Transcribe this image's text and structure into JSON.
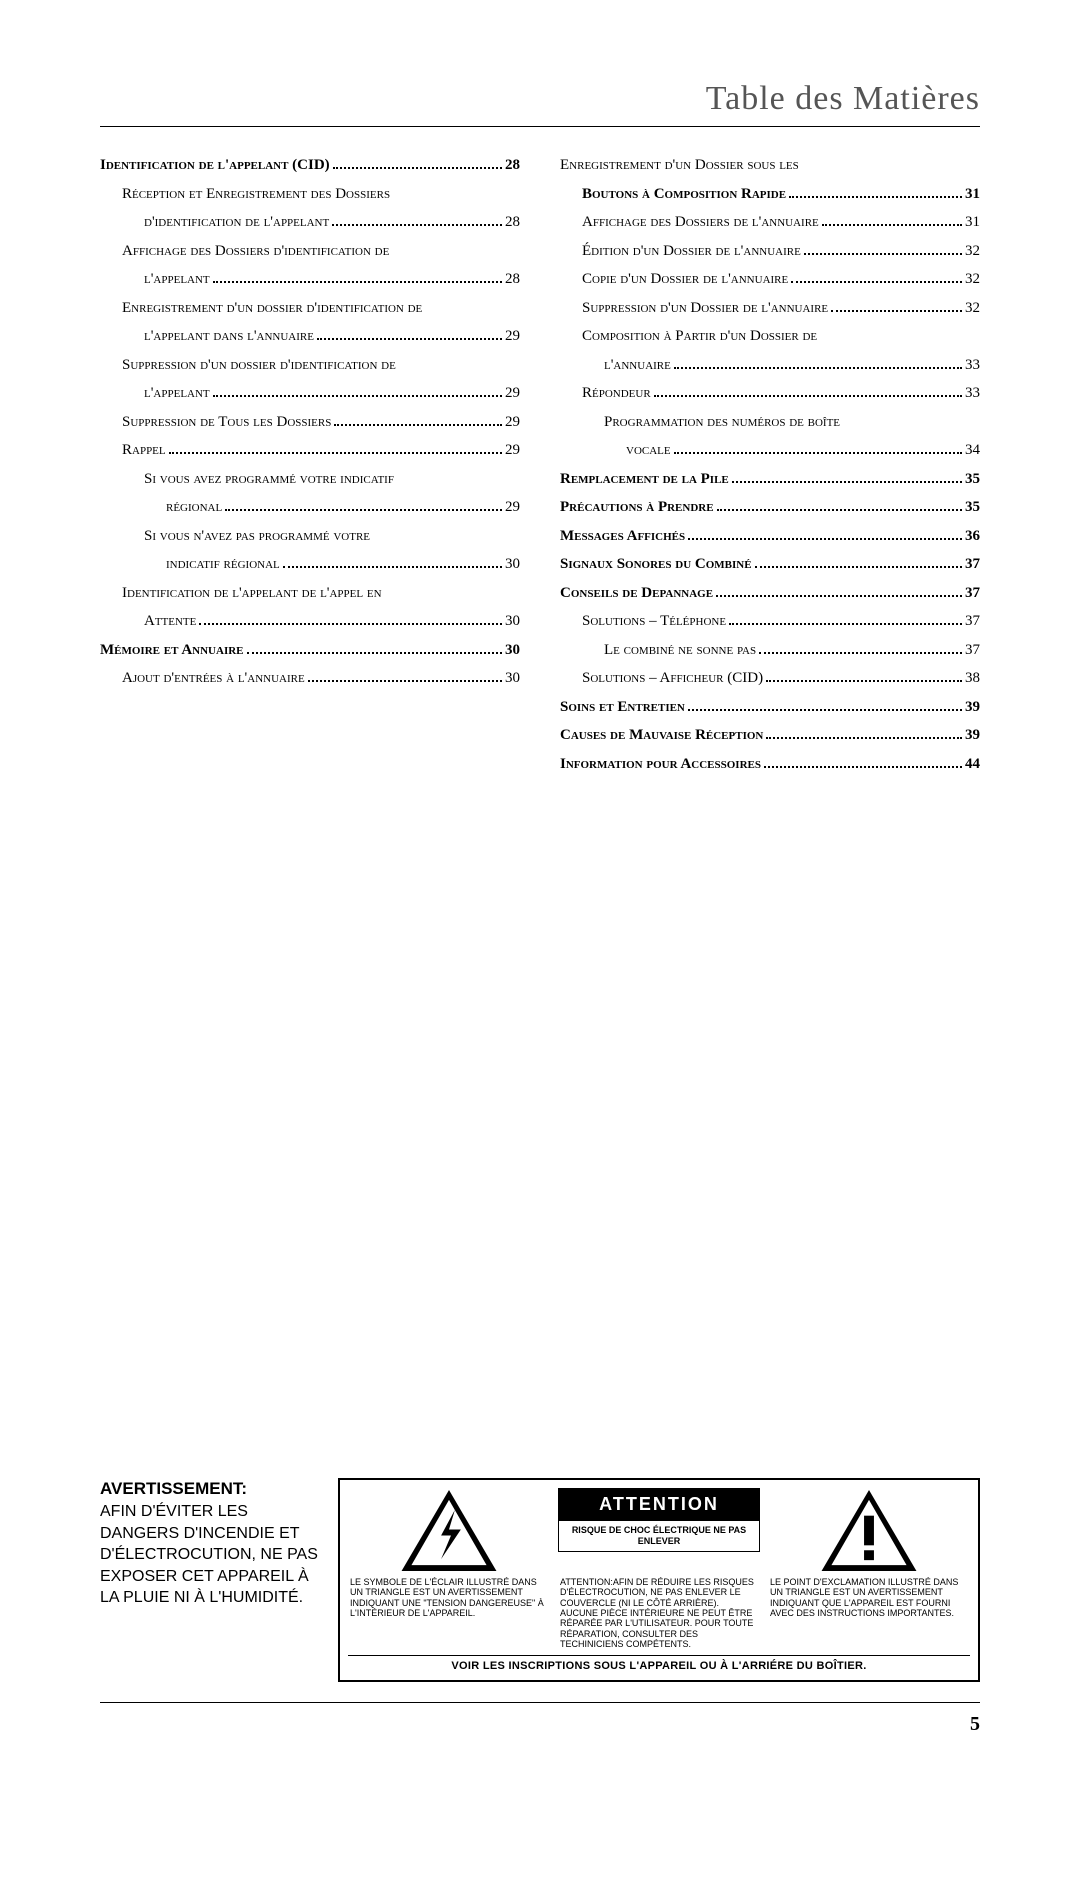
{
  "title": "Table des Matières",
  "page_number": "5",
  "toc": {
    "left": [
      {
        "label": "Identification de l'appelant (CID)",
        "cont": null,
        "page": "28",
        "level": 0,
        "bold": true
      },
      {
        "label": "Réception et Enregistrement des Dossiers",
        "cont": "d'identification de l'appelant",
        "page": "28",
        "level": 1
      },
      {
        "label": "Affichage des Dossiers d'identification de",
        "cont": "l'appelant",
        "page": "28",
        "level": 1
      },
      {
        "label": "Enregistrement d'un dossier d'identification de",
        "cont": "l'appelant dans l'annuaire",
        "page": "29",
        "level": 1
      },
      {
        "label": "Suppression d'un dossier d'identification de",
        "cont": "l'appelant",
        "page": "29",
        "level": 1
      },
      {
        "label": "Suppression de Tous les Dossiers",
        "cont": null,
        "page": "29",
        "level": 1
      },
      {
        "label": "Rappel",
        "cont": null,
        "page": "29",
        "level": 1
      },
      {
        "label": "Si vous avez programmé votre indicatif",
        "cont": "régional",
        "page": "29",
        "level": 2
      },
      {
        "label": "Si vous n'avez pas programmé votre",
        "cont": "indicatif régional",
        "page": "30",
        "level": 2
      },
      {
        "label": "Identification de l'appelant de l'appel en",
        "cont": "Attente",
        "page": "30",
        "level": 1
      },
      {
        "label": "Mémoire et Annuaire",
        "cont": null,
        "page": "30",
        "level": 0,
        "bold": true
      },
      {
        "label": "Ajout d'entrées à l'annuaire",
        "cont": null,
        "page": "30",
        "level": 1
      }
    ],
    "right": [
      {
        "label": "Enregistrement d'un Dossier sous les",
        "cont": "Boutons à Composition Rapide",
        "page": "31",
        "level": 0,
        "plain": true,
        "cont_bold": true
      },
      {
        "label": "Affichage des Dossiers de l'annuaire",
        "cont": null,
        "page": "31",
        "level": 1
      },
      {
        "label": "Édition d'un Dossier de l'annuaire",
        "cont": null,
        "page": "32",
        "level": 1
      },
      {
        "label": "Copie d'un Dossier de l'annuaire",
        "cont": null,
        "page": "32",
        "level": 1
      },
      {
        "label": "Suppression d'un Dossier de l'annuaire",
        "cont": null,
        "page": "32",
        "level": 1
      },
      {
        "label": "Composition à Partir d'un Dossier de",
        "cont": "l'annuaire",
        "page": "33",
        "level": 1
      },
      {
        "label": "Répondeur",
        "cont": null,
        "page": "33",
        "level": 1
      },
      {
        "label": "Programmation des numéros de boîte",
        "cont": "vocale",
        "page": "34",
        "level": 2
      },
      {
        "label": "Remplacement de la Pile",
        "cont": null,
        "page": "35",
        "level": 0,
        "bold": true
      },
      {
        "label": "Précautions à Prendre",
        "cont": null,
        "page": "35",
        "level": 0,
        "bold": true
      },
      {
        "label": "Messages Affichés",
        "cont": null,
        "page": "36",
        "level": 0,
        "bold": true
      },
      {
        "label": "Signaux Sonores du Combiné",
        "cont": null,
        "page": "37",
        "level": 0,
        "bold": true
      },
      {
        "label": "Conseils de Depannage",
        "cont": null,
        "page": "37",
        "level": 0,
        "bold": true
      },
      {
        "label": "Solutions – Téléphone",
        "cont": null,
        "page": "37",
        "level": 1
      },
      {
        "label": "Le combiné ne sonne pas",
        "cont": null,
        "page": "37",
        "level": 2
      },
      {
        "label": "Solutions – Afficheur (CID)",
        "cont": null,
        "page": "38",
        "level": 1
      },
      {
        "label": "Soins et Entretien",
        "cont": null,
        "page": "39",
        "level": 0,
        "bold": true
      },
      {
        "label": "Causes de Mauvaise Réception",
        "cont": null,
        "page": "39",
        "level": 0,
        "bold": true
      },
      {
        "label": "Information pour Accessoires",
        "cont": null,
        "page": "44",
        "level": 0,
        "bold": true
      }
    ]
  },
  "warning": {
    "left_title": "AVERTISSEMENT:",
    "left_body": "AFIN D'ÉVITER LES DANGERS D'INCENDIE ET D'ÉLECTROCUTION, NE PAS EXPOSER CET APPAREIL À LA PLUIE NI À L'HUMIDITÉ.",
    "attention": "ATTENTION",
    "risque": "RISQUE DE CHOC ÉLECTRIQUE NE PAS ENLEVER",
    "col1": "LE SYMBOLE DE L'ÉCLAIR ILLUSTRÉ DANS UN TRIANGLE EST UN AVERTISSEMENT INDIQUANT UNE \"TENSION DANGEREUSE\" À L'INTÉRIEUR DE L'APPAREIL.",
    "col2": "ATTENTION:AFIN DE RÉDUIRE LES RISQUES D'ÉLECTROCUTION, NE PAS ENLEVER LE COUVERCLE (NI LE CÔTÉ ARRIÈRE). AUCUNE PIÈCE INTÉRIEURE NE PEUT ÊTRE RÉPARÉE PAR L'UTILISATEUR. POUR TOUTE RÉPARATION, CONSULTER DES TECHINICIENS COMPÉTENTS.",
    "col3": "LE POINT D'EXCLAMATION ILLUSTRÉ DANS UN TRIANGLE EST UN AVERTISSEMENT INDIQUANT QUE L'APPAREIL EST FOURNI AVEC DES INSTRUCTIONS IMPORTANTES.",
    "bottom": "VOIR LES INSCRIPTIONS SOUS L'APPAREIL OU À L'ARRIÉRE DU BOÎTIER."
  }
}
